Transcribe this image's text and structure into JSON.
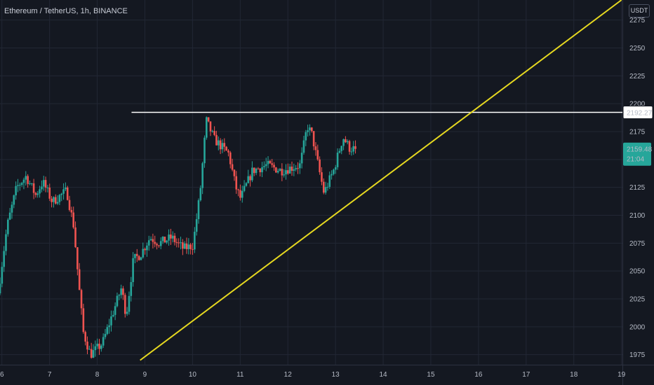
{
  "header": {
    "title": "Ethereum / TetherUS, 1h, BINANCE"
  },
  "scale": {
    "currency": "USDT"
  },
  "labels": {
    "level": "2192.27",
    "price": "2159.48",
    "countdown": "21:04"
  },
  "colors": {
    "background": "#141821",
    "grid": "#222734",
    "up": "#26a69a",
    "down": "#ef5350",
    "axis_text": "#b6bbc6",
    "hline": "#ffffff",
    "trend": "#e6d820",
    "price_tag": "#26a69a"
  },
  "chart_data": {
    "type": "candlestick",
    "symbol": "Ethereum / TetherUS",
    "interval": "1h",
    "exchange": "BINANCE",
    "x_ticks": [
      "6",
      "7",
      "8",
      "9",
      "10",
      "11",
      "12",
      "13",
      "14",
      "15",
      "16",
      "17",
      "18",
      "19"
    ],
    "y_ticks": [
      1975,
      2000,
      2025,
      2050,
      2075,
      2100,
      2125,
      2150,
      2175,
      2200,
      2225,
      2250,
      2275
    ],
    "xlim": [
      5.96,
      19.02
    ],
    "ylim": [
      1966,
      2293
    ],
    "grid": true,
    "last_price": 2159.48,
    "time_to_close": "21:04",
    "horizontal_line": {
      "price": 2192.27,
      "from_day": 8.72
    },
    "trend_line": {
      "points": [
        {
          "day": 8.9,
          "price": 1970
        },
        {
          "day": 19.0,
          "price": 2293
        }
      ]
    },
    "path_anchors": [
      {
        "day": 5.96,
        "price": 2030
      },
      {
        "day": 6.15,
        "price": 2090
      },
      {
        "day": 6.35,
        "price": 2125
      },
      {
        "day": 6.55,
        "price": 2135
      },
      {
        "day": 6.75,
        "price": 2118
      },
      {
        "day": 6.9,
        "price": 2130
      },
      {
        "day": 7.1,
        "price": 2112
      },
      {
        "day": 7.4,
        "price": 2122
      },
      {
        "day": 7.55,
        "price": 2090
      },
      {
        "day": 7.65,
        "price": 2040
      },
      {
        "day": 7.75,
        "price": 1995
      },
      {
        "day": 7.9,
        "price": 1975
      },
      {
        "day": 8.15,
        "price": 1985
      },
      {
        "day": 8.35,
        "price": 2010
      },
      {
        "day": 8.55,
        "price": 2035
      },
      {
        "day": 8.65,
        "price": 2010
      },
      {
        "day": 8.8,
        "price": 2060
      },
      {
        "day": 8.95,
        "price": 2065
      },
      {
        "day": 9.15,
        "price": 2080
      },
      {
        "day": 9.35,
        "price": 2075
      },
      {
        "day": 9.6,
        "price": 2080
      },
      {
        "day": 9.85,
        "price": 2070
      },
      {
        "day": 10.05,
        "price": 2073
      },
      {
        "day": 10.2,
        "price": 2120
      },
      {
        "day": 10.33,
        "price": 2185
      },
      {
        "day": 10.5,
        "price": 2168
      },
      {
        "day": 10.8,
        "price": 2155
      },
      {
        "day": 10.95,
        "price": 2125
      },
      {
        "day": 11.05,
        "price": 2115
      },
      {
        "day": 11.3,
        "price": 2140
      },
      {
        "day": 11.6,
        "price": 2145
      },
      {
        "day": 11.9,
        "price": 2140
      },
      {
        "day": 12.3,
        "price": 2145
      },
      {
        "day": 12.45,
        "price": 2180
      },
      {
        "day": 12.55,
        "price": 2172
      },
      {
        "day": 12.7,
        "price": 2140
      },
      {
        "day": 12.8,
        "price": 2120
      },
      {
        "day": 13.0,
        "price": 2140
      },
      {
        "day": 13.2,
        "price": 2170
      },
      {
        "day": 13.34,
        "price": 2160
      },
      {
        "day": 13.45,
        "price": 2159.48
      }
    ]
  }
}
